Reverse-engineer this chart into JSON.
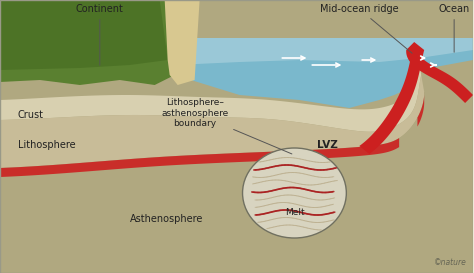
{
  "bg_color": "#ede8d8",
  "labels": {
    "continent": "Continent",
    "mid_ocean_ridge": "Mid-ocean ridge",
    "ocean": "Ocean",
    "crust": "Crust",
    "lithosphere": "Lithosphere",
    "litho_asthen_boundary": "Lithosphere–\nasthenosphere\nboundary",
    "lvz": "LVZ",
    "asthenosphere": "Asthenosphere",
    "melt": "Melt",
    "nature": "©nature"
  },
  "colors": {
    "bg": "#ede8d8",
    "ocean_top": "#a8d0dc",
    "ocean_bot": "#7ab8cc",
    "sand_crust": "#d8d0b0",
    "sand_litho": "#c8bc98",
    "sand_asthen": "#b0a880",
    "red_melt": "#cc2020",
    "green_land": "#5a8030",
    "green_dark": "#3a6018",
    "beach": "#d8c890",
    "circle_bg": "#d8d4c0",
    "circle_edge": "#707060",
    "melt_red": "#aa2020",
    "melt_tan": "#b8aa88",
    "white": "#ffffff",
    "label_txt": "#222222",
    "line_col": "#555555"
  }
}
